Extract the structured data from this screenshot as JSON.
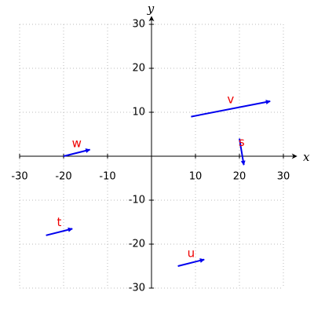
{
  "chart_data": {
    "type": "vector",
    "xlabel": "x",
    "ylabel": "y",
    "xlim": [
      -30,
      30
    ],
    "ylim": [
      -30,
      30
    ],
    "xticks": [
      -30,
      -20,
      -10,
      10,
      20,
      30
    ],
    "yticks": [
      -30,
      -20,
      -10,
      10,
      20,
      30
    ],
    "grid": true,
    "color": "#0000ee",
    "label_color": "#ee0000",
    "vectors": [
      {
        "label": "v",
        "start": [
          9,
          9
        ],
        "end": [
          27,
          12.5
        ]
      },
      {
        "label": "s",
        "start": [
          20,
          4
        ],
        "end": [
          21,
          -2
        ]
      },
      {
        "label": "w",
        "start": [
          -20,
          0
        ],
        "end": [
          -14,
          1.5
        ]
      },
      {
        "label": "t",
        "start": [
          -24,
          -18
        ],
        "end": [
          -18,
          -16.5
        ]
      },
      {
        "label": "u",
        "start": [
          6,
          -25
        ],
        "end": [
          12,
          -23.5
        ]
      }
    ]
  }
}
